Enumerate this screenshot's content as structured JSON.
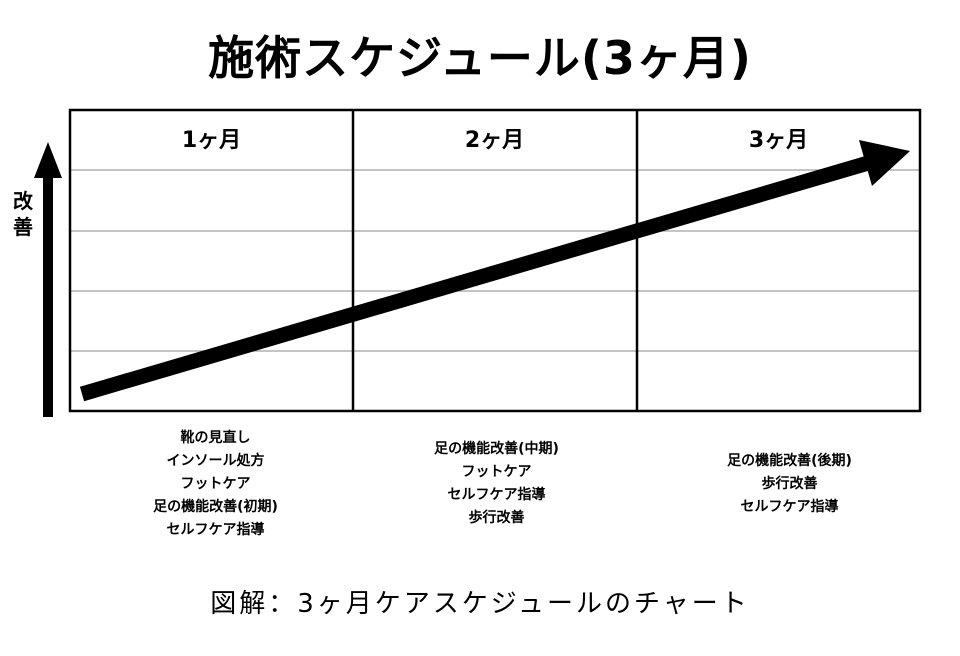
{
  "title": "施術スケジュール(3ヶ月)",
  "y_axis_label": "改善",
  "columns": [
    {
      "label": "1ヶ月",
      "items": [
        "靴の見直し",
        "インソール処方",
        "フットケア",
        "足の機能改善(初期)",
        "セルフケア指導"
      ]
    },
    {
      "label": "2ヶ月",
      "items": [
        "足の機能改善(中期)",
        "フットケア",
        "セルフケア指導",
        "歩行改善"
      ]
    },
    {
      "label": "3ヶ月",
      "items": [
        "足の機能改善(後期)",
        "歩行改善",
        "セルフケア指導"
      ]
    }
  ],
  "caption": "図解：3ヶ月ケアスケジュールのチャート",
  "colors": {
    "line": "#000000",
    "grid": "#b0b0b0",
    "background": "#ffffff"
  },
  "icons": {
    "y_axis": "up-arrow-icon",
    "trend": "diagonal-arrow-icon"
  }
}
